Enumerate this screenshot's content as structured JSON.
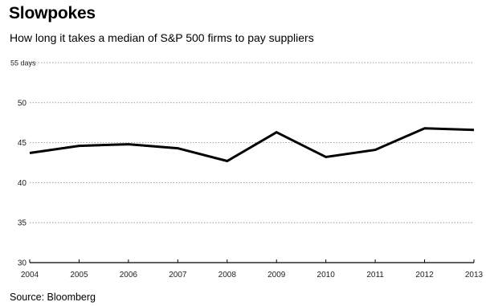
{
  "chart_data": {
    "type": "line",
    "title": "Slowpokes",
    "subtitle": "How long it takes a median of S&P 500 firms to pay suppliers",
    "source": "Source: Bloomberg",
    "x": [
      "2004",
      "2005",
      "2006",
      "2007",
      "2008",
      "2009",
      "2010",
      "2011",
      "2012",
      "2013"
    ],
    "series": [
      {
        "values": [
          43.7,
          44.6,
          44.8,
          44.3,
          42.7,
          46.3,
          43.2,
          44.1,
          46.8,
          46.6
        ]
      }
    ],
    "y_ticks": [
      {
        "value": 55,
        "label": "55 days"
      },
      {
        "value": 50,
        "label": "50"
      },
      {
        "value": 45,
        "label": "45"
      },
      {
        "value": 40,
        "label": "40"
      },
      {
        "value": 35,
        "label": "35"
      },
      {
        "value": 30,
        "label": "30"
      }
    ],
    "ylim": [
      30,
      55
    ],
    "grid": true,
    "line_color": "#000000",
    "grid_color": "#9a9a9a"
  }
}
